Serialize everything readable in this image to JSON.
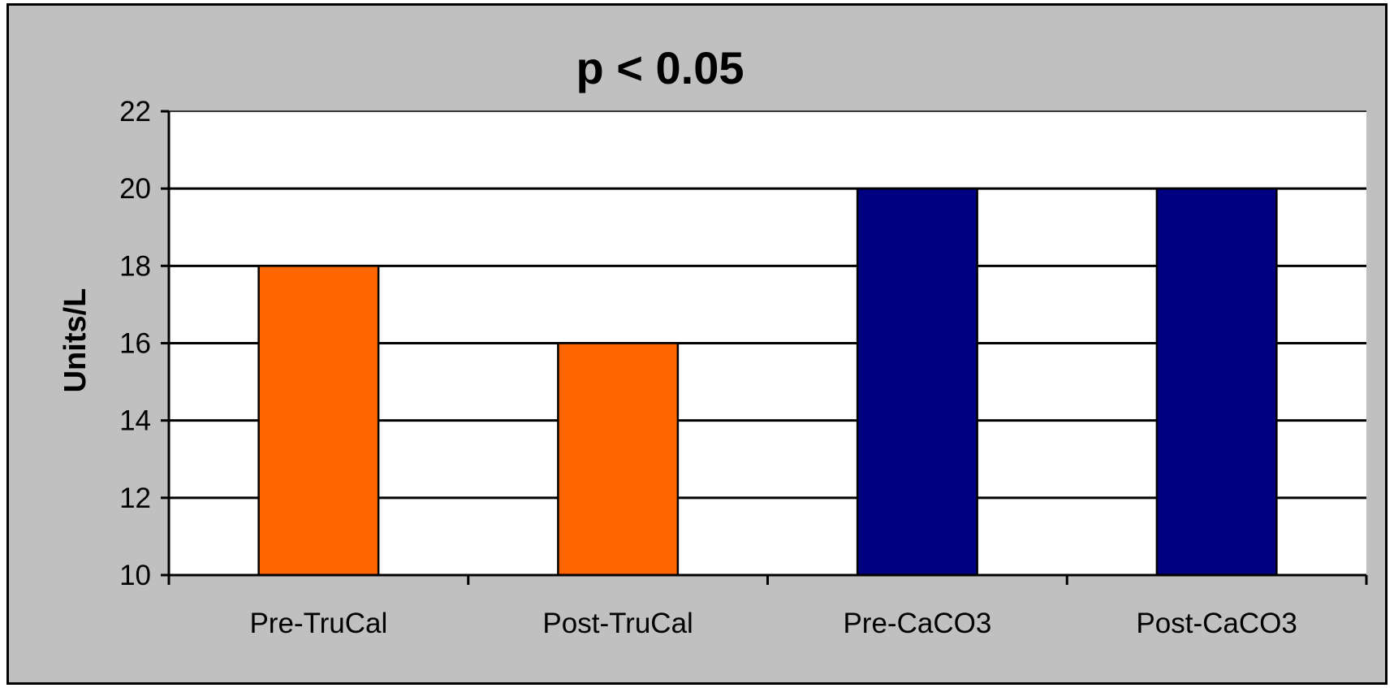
{
  "chart_data": {
    "type": "bar",
    "title": "p < 0.05",
    "xlabel": "",
    "ylabel": "Units/L",
    "categories": [
      "Pre-TruCal",
      "Post-TruCal",
      "Pre-CaCO3",
      "Post-CaCO3"
    ],
    "values": [
      18,
      16,
      20,
      20
    ],
    "bar_colors": [
      "#ff6600",
      "#ff6600",
      "#000080",
      "#000080"
    ],
    "ylim": [
      10,
      22
    ],
    "yticks": [
      10,
      12,
      14,
      16,
      18,
      20,
      22
    ],
    "grid": true,
    "plot_background": "#ffffff",
    "chart_background": "#c0c0c0",
    "legend": "none"
  }
}
